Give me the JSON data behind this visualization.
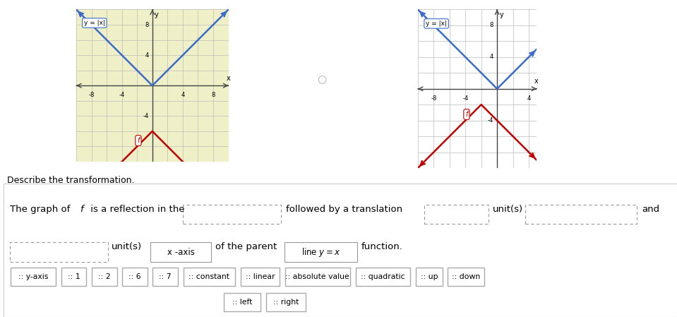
{
  "fig_bg": "#FFFFFF",
  "top_bg": "#FFFFFF",
  "left_panel_bg": "#F0F0C8",
  "text_section_bg": "#F5F5F5",
  "chips_bg": "#EBEBEB",
  "left_graph": {
    "xlim": [
      -10,
      10
    ],
    "ylim": [
      -10,
      10
    ],
    "xtick_vals": [
      -8,
      -4,
      4,
      8
    ],
    "ytick_vals": [
      -4,
      4,
      8
    ],
    "grid_step": 2,
    "parent_color": "#3A6BC9",
    "f_color": "#C00000",
    "parent_label": "y = |x|",
    "f_label": "f",
    "parent_vertex": [
      0,
      0
    ],
    "f_vertex": [
      0,
      -6
    ],
    "bg_color": "#F0F0C8"
  },
  "right_graph": {
    "xlim": [
      -10,
      5
    ],
    "ylim": [
      -10,
      10
    ],
    "xtick_vals": [
      -8,
      -4,
      4
    ],
    "ytick_vals": [
      -4,
      4,
      8
    ],
    "grid_step": 2,
    "parent_color": "#3A6BC9",
    "f_color": "#C00000",
    "parent_label": "y = |x|",
    "f_label": "f",
    "parent_vertex": [
      0,
      0
    ],
    "f_vertex": [
      -2,
      -2
    ],
    "bg_color": "#FFFFFF"
  },
  "describe_text": "Describe the transformation.",
  "sentence1a": "The graph of ",
  "sentence1b": "f",
  "sentence1c": " is a reflection in the",
  "sentence1d": "followed by a translation",
  "sentence1e": "unit(s)",
  "sentence1f": "and",
  "sentence2a": "unit(s)",
  "sentence2b": "x -axis",
  "sentence2c": "of the parent",
  "sentence2d": "line y = x",
  "sentence2e": "function.",
  "chips_row1": [
    ":: y-axis",
    ":: 1",
    ":: 2",
    ":: 6",
    ":: 7",
    ":: constant",
    ":: linear",
    ":: absolute value",
    ":: quadratic",
    ":: up",
    ":: down"
  ],
  "chips_row2": [
    ":: left",
    ":: right"
  ]
}
